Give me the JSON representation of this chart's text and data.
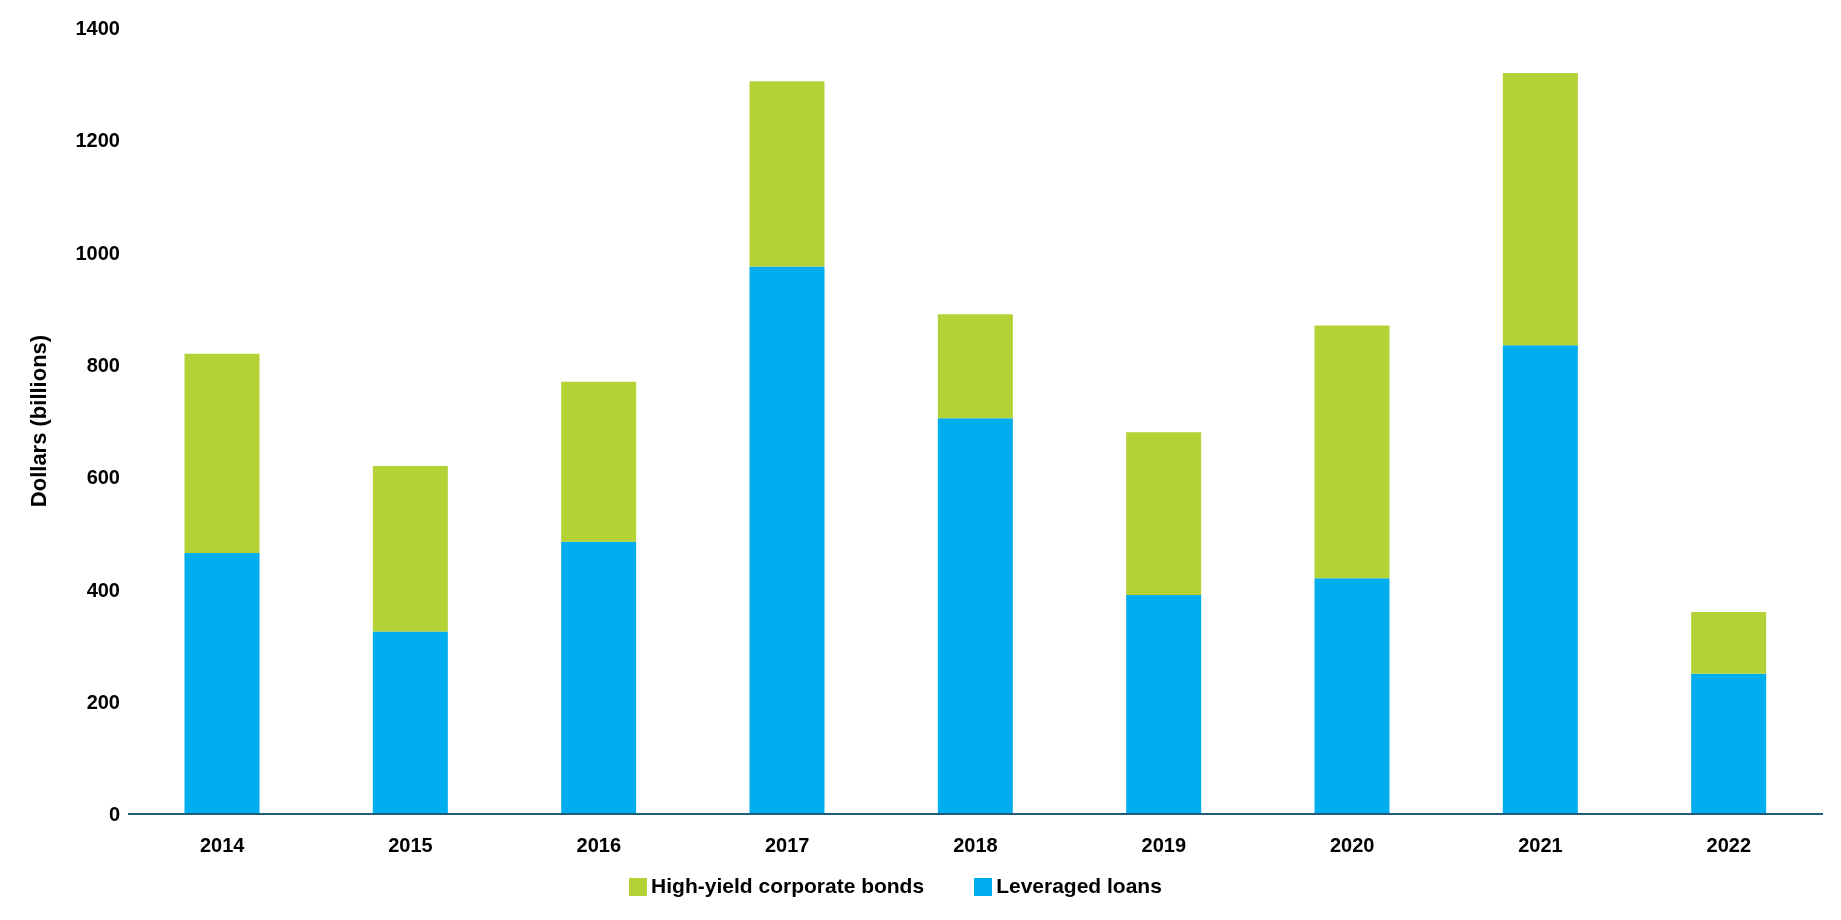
{
  "chart_data": {
    "type": "bar",
    "stacked": true,
    "ylabel": "Dollars (billions)",
    "categories": [
      "2014",
      "2015",
      "2016",
      "2017",
      "2018",
      "2019",
      "2020",
      "2021",
      "2022"
    ],
    "series": [
      {
        "name": "Leveraged loans",
        "color": "#00adee",
        "values": [
          465,
          325,
          485,
          975,
          705,
          390,
          420,
          835,
          250
        ]
      },
      {
        "name": "High-yield corporate bonds",
        "color": "#b3d235",
        "values": [
          355,
          295,
          285,
          330,
          185,
          290,
          450,
          485,
          110
        ]
      }
    ],
    "ylim": [
      0,
      1400
    ],
    "yticks": [
      0,
      200,
      400,
      600,
      800,
      1000,
      1200,
      1400
    ],
    "grid": false,
    "legend": "bottom"
  }
}
